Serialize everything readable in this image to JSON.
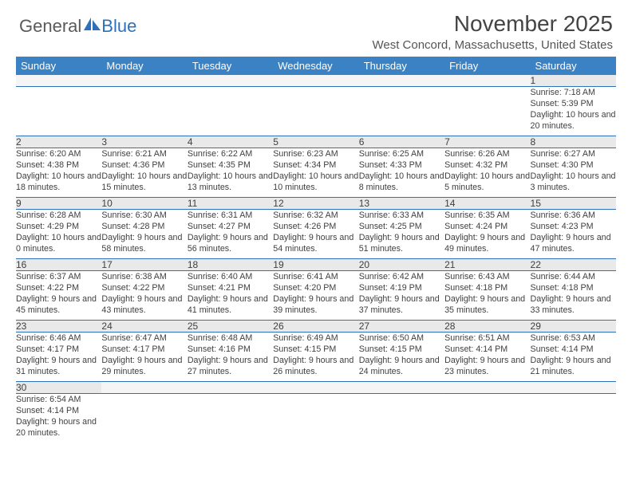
{
  "logo": {
    "part1": "General",
    "part2": "Blue"
  },
  "title": "November 2025",
  "location": "West Concord, Massachusetts, United States",
  "colors": {
    "header_bg": "#3b82c4",
    "header_fg": "#ffffff",
    "daynum_bg": "#e9e9e9",
    "rule": "#2d72b8",
    "logo_gray": "#5a5a5a",
    "logo_blue": "#2d72b8"
  },
  "days_of_week": [
    "Sunday",
    "Monday",
    "Tuesday",
    "Wednesday",
    "Thursday",
    "Friday",
    "Saturday"
  ],
  "first_weekday": 6,
  "num_days": 30,
  "days": {
    "1": {
      "sunrise": "7:18 AM",
      "sunset": "5:39 PM",
      "daylight": "10 hours and 20 minutes."
    },
    "2": {
      "sunrise": "6:20 AM",
      "sunset": "4:38 PM",
      "daylight": "10 hours and 18 minutes."
    },
    "3": {
      "sunrise": "6:21 AM",
      "sunset": "4:36 PM",
      "daylight": "10 hours and 15 minutes."
    },
    "4": {
      "sunrise": "6:22 AM",
      "sunset": "4:35 PM",
      "daylight": "10 hours and 13 minutes."
    },
    "5": {
      "sunrise": "6:23 AM",
      "sunset": "4:34 PM",
      "daylight": "10 hours and 10 minutes."
    },
    "6": {
      "sunrise": "6:25 AM",
      "sunset": "4:33 PM",
      "daylight": "10 hours and 8 minutes."
    },
    "7": {
      "sunrise": "6:26 AM",
      "sunset": "4:32 PM",
      "daylight": "10 hours and 5 minutes."
    },
    "8": {
      "sunrise": "6:27 AM",
      "sunset": "4:30 PM",
      "daylight": "10 hours and 3 minutes."
    },
    "9": {
      "sunrise": "6:28 AM",
      "sunset": "4:29 PM",
      "daylight": "10 hours and 0 minutes."
    },
    "10": {
      "sunrise": "6:30 AM",
      "sunset": "4:28 PM",
      "daylight": "9 hours and 58 minutes."
    },
    "11": {
      "sunrise": "6:31 AM",
      "sunset": "4:27 PM",
      "daylight": "9 hours and 56 minutes."
    },
    "12": {
      "sunrise": "6:32 AM",
      "sunset": "4:26 PM",
      "daylight": "9 hours and 54 minutes."
    },
    "13": {
      "sunrise": "6:33 AM",
      "sunset": "4:25 PM",
      "daylight": "9 hours and 51 minutes."
    },
    "14": {
      "sunrise": "6:35 AM",
      "sunset": "4:24 PM",
      "daylight": "9 hours and 49 minutes."
    },
    "15": {
      "sunrise": "6:36 AM",
      "sunset": "4:23 PM",
      "daylight": "9 hours and 47 minutes."
    },
    "16": {
      "sunrise": "6:37 AM",
      "sunset": "4:22 PM",
      "daylight": "9 hours and 45 minutes."
    },
    "17": {
      "sunrise": "6:38 AM",
      "sunset": "4:22 PM",
      "daylight": "9 hours and 43 minutes."
    },
    "18": {
      "sunrise": "6:40 AM",
      "sunset": "4:21 PM",
      "daylight": "9 hours and 41 minutes."
    },
    "19": {
      "sunrise": "6:41 AM",
      "sunset": "4:20 PM",
      "daylight": "9 hours and 39 minutes."
    },
    "20": {
      "sunrise": "6:42 AM",
      "sunset": "4:19 PM",
      "daylight": "9 hours and 37 minutes."
    },
    "21": {
      "sunrise": "6:43 AM",
      "sunset": "4:18 PM",
      "daylight": "9 hours and 35 minutes."
    },
    "22": {
      "sunrise": "6:44 AM",
      "sunset": "4:18 PM",
      "daylight": "9 hours and 33 minutes."
    },
    "23": {
      "sunrise": "6:46 AM",
      "sunset": "4:17 PM",
      "daylight": "9 hours and 31 minutes."
    },
    "24": {
      "sunrise": "6:47 AM",
      "sunset": "4:17 PM",
      "daylight": "9 hours and 29 minutes."
    },
    "25": {
      "sunrise": "6:48 AM",
      "sunset": "4:16 PM",
      "daylight": "9 hours and 27 minutes."
    },
    "26": {
      "sunrise": "6:49 AM",
      "sunset": "4:15 PM",
      "daylight": "9 hours and 26 minutes."
    },
    "27": {
      "sunrise": "6:50 AM",
      "sunset": "4:15 PM",
      "daylight": "9 hours and 24 minutes."
    },
    "28": {
      "sunrise": "6:51 AM",
      "sunset": "4:14 PM",
      "daylight": "9 hours and 23 minutes."
    },
    "29": {
      "sunrise": "6:53 AM",
      "sunset": "4:14 PM",
      "daylight": "9 hours and 21 minutes."
    },
    "30": {
      "sunrise": "6:54 AM",
      "sunset": "4:14 PM",
      "daylight": "9 hours and 20 minutes."
    }
  },
  "labels": {
    "sunrise": "Sunrise: ",
    "sunset": "Sunset: ",
    "daylight": "Daylight: "
  }
}
